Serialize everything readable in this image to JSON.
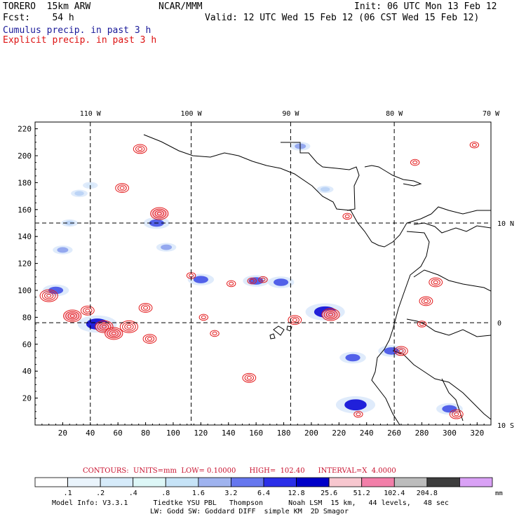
{
  "header": {
    "model": "TORERO  15km ARW",
    "center": "NCAR/MMM",
    "init": "Init: 06 UTC Mon 13 Feb 12",
    "fcst": "Fcst:    54 h",
    "valid": "Valid: 12 UTC Wed 15 Feb 12 (06 CST Wed 15 Feb 12)",
    "legend_cumulus": "Cumulus precip. in past 3 h",
    "legend_explicit": "Explicit precip. in past 3 h"
  },
  "colors": {
    "cumulus_text": "#1a1a99",
    "explicit_text": "#dd1111",
    "contour_line": "#e31a1c",
    "coast": "#000000"
  },
  "chart_data": {
    "type": "heatmap",
    "title": "Cumulus precip. in past 3 h / Explicit precip. in past 3 h",
    "x_grid_range": [
      0,
      330
    ],
    "y_grid_range": [
      0,
      225
    ],
    "x_ticks": [
      20,
      40,
      60,
      80,
      100,
      120,
      140,
      160,
      180,
      200,
      220,
      240,
      260,
      280,
      300,
      320
    ],
    "y_ticks": [
      20,
      40,
      60,
      80,
      100,
      120,
      140,
      160,
      180,
      200,
      220
    ],
    "lon_labels": [
      "110 W",
      "100 W",
      "90 W",
      "80 W",
      "70 W"
    ],
    "lon_grid_x": [
      40,
      113,
      185,
      260
    ],
    "lat_labels": [
      "10 N",
      "0",
      "10 S"
    ],
    "lat_grid_y": [
      150,
      76
    ],
    "contours": {
      "text": "CONTOURS:  UNITS=mm  LOW= 0.10000      HIGH=  102.40      INTERVAL=X  4.0000",
      "units": "mm",
      "low": 0.1,
      "high": 102.4,
      "interval": "X 4.0000"
    },
    "colorbar": {
      "levels": [
        ".1",
        ".2",
        ".4",
        ".8",
        "1.6",
        "3.2",
        "6.4",
        "12.8",
        "25.6",
        "51.2",
        "102.4",
        "204.8"
      ],
      "units": "mm",
      "colors": [
        "#ffffff",
        "#eaf4fc",
        "#d6ebfa",
        "#ddf7f7",
        "#c6e3f7",
        "#9fb3ef",
        "#6677ee",
        "#2a2ee8",
        "#0000c8",
        "#f7c7cf",
        "#f27fa9",
        "#bcbcbc",
        "#3d3d3d",
        "#d9a1f5"
      ]
    },
    "explicit_cells": [
      {
        "x": 10,
        "y": 96,
        "v": 12
      },
      {
        "x": 27,
        "y": 81,
        "v": 25
      },
      {
        "x": 38,
        "y": 85,
        "v": 8
      },
      {
        "x": 50,
        "y": 73,
        "v": 40
      },
      {
        "x": 57,
        "y": 68,
        "v": 20
      },
      {
        "x": 68,
        "y": 73,
        "v": 15
      },
      {
        "x": 80,
        "y": 87,
        "v": 10
      },
      {
        "x": 83,
        "y": 64,
        "v": 6
      },
      {
        "x": 90,
        "y": 157,
        "v": 30
      },
      {
        "x": 63,
        "y": 176,
        "v": 10
      },
      {
        "x": 76,
        "y": 205,
        "v": 6
      },
      {
        "x": 113,
        "y": 111,
        "v": 5
      },
      {
        "x": 122,
        "y": 80,
        "v": 4
      },
      {
        "x": 130,
        "y": 68,
        "v": 4
      },
      {
        "x": 142,
        "y": 105,
        "v": 4
      },
      {
        "x": 157,
        "y": 107,
        "v": 5
      },
      {
        "x": 165,
        "y": 108,
        "v": 4
      },
      {
        "x": 155,
        "y": 35,
        "v": 8
      },
      {
        "x": 188,
        "y": 78,
        "v": 6
      },
      {
        "x": 214,
        "y": 82,
        "v": 45
      },
      {
        "x": 226,
        "y": 155,
        "v": 5
      },
      {
        "x": 234,
        "y": 8,
        "v": 5
      },
      {
        "x": 265,
        "y": 55,
        "v": 8
      },
      {
        "x": 283,
        "y": 92,
        "v": 6
      },
      {
        "x": 290,
        "y": 106,
        "v": 6
      },
      {
        "x": 280,
        "y": 75,
        "v": 4
      },
      {
        "x": 305,
        "y": 8,
        "v": 10
      },
      {
        "x": 318,
        "y": 208,
        "v": 4
      },
      {
        "x": 275,
        "y": 195,
        "v": 3
      }
    ],
    "cumulus_patches": [
      {
        "x": 15,
        "y": 100,
        "v": 6.4
      },
      {
        "x": 20,
        "y": 130,
        "v": 3.2
      },
      {
        "x": 25,
        "y": 150,
        "v": 1.6
      },
      {
        "x": 32,
        "y": 172,
        "v": 1.6
      },
      {
        "x": 40,
        "y": 178,
        "v": 0.8
      },
      {
        "x": 45,
        "y": 75,
        "v": 12.8
      },
      {
        "x": 88,
        "y": 150,
        "v": 6.4
      },
      {
        "x": 95,
        "y": 132,
        "v": 3.2
      },
      {
        "x": 120,
        "y": 108,
        "v": 6.4
      },
      {
        "x": 160,
        "y": 107,
        "v": 6.4
      },
      {
        "x": 178,
        "y": 106,
        "v": 6.4
      },
      {
        "x": 210,
        "y": 84,
        "v": 12.8
      },
      {
        "x": 230,
        "y": 50,
        "v": 6.4
      },
      {
        "x": 232,
        "y": 15,
        "v": 12.8
      },
      {
        "x": 258,
        "y": 55,
        "v": 6.4
      },
      {
        "x": 210,
        "y": 175,
        "v": 1.6
      },
      {
        "x": 192,
        "y": 207,
        "v": 3.2
      },
      {
        "x": 300,
        "y": 12,
        "v": 6.4
      }
    ]
  },
  "footer": {
    "line1": "Model Info: V3.3.1      Tiedtke YSU PBL   Thompson      Noah LSM  15 km,   44 levels,   48 sec",
    "line2": "LW: Godd SW: Goddard DIFF  simple KM  2D Smagor"
  }
}
